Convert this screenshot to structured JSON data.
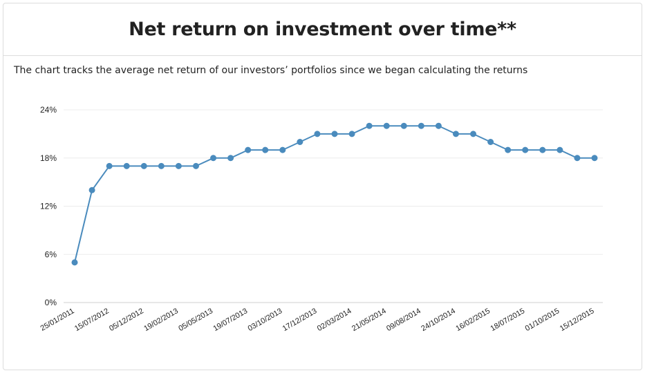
{
  "header": {
    "title": "Net return on investment over time**"
  },
  "description": "The chart tracks the average net return of our investors’ portfolios since we began calculating the returns",
  "chart_data": {
    "type": "line",
    "title": "Net return on investment over time**",
    "xlabel": "",
    "ylabel": "",
    "ylim": [
      0,
      24
    ],
    "yticks": [
      "0%",
      "6%",
      "12%",
      "18%",
      "24%"
    ],
    "ytick_values": [
      0,
      6,
      12,
      18,
      24
    ],
    "x_tick_labels": [
      "25/01/2011",
      "15/07/2012",
      "05/12/2012",
      "19/02/2013",
      "05/05/2013",
      "19/07/2013",
      "03/10/2013",
      "17/12/2013",
      "02/03/2014",
      "21/05/2014",
      "09/08/2014",
      "24/10/2014",
      "16/02/2015",
      "18/07/2015",
      "01/10/2015",
      "15/12/2015"
    ],
    "grid": true,
    "line_color": "#4a8bbd",
    "series": [
      {
        "values": [
          5,
          14,
          17,
          17,
          17,
          17,
          17,
          17,
          18,
          18,
          19,
          19,
          19,
          20,
          21,
          21,
          21,
          22,
          22,
          22,
          22,
          22,
          21,
          21,
          20,
          19,
          19,
          19,
          19,
          18,
          18
        ]
      }
    ]
  }
}
